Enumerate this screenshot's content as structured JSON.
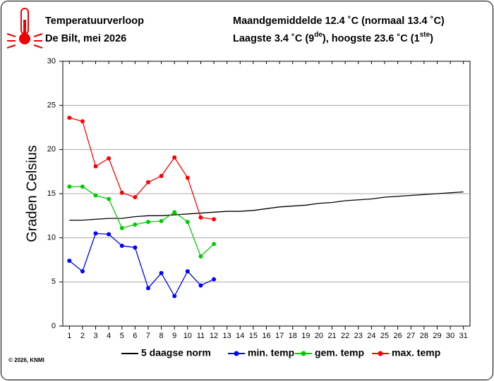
{
  "chart_data": {
    "type": "line",
    "title": "Temperatuurverloop",
    "subtitle": "De Bilt, mei 2026",
    "header_right": [
      "Maandgemiddelde 12.4 ˚C (normaal 13.4 ˚C)",
      [
        "Laagste 3.4 ˚C (9",
        "de",
        "), hoogste 23.6 ˚C (1",
        "ste",
        ")"
      ]
    ],
    "ylabel": "Graden Celsius",
    "footer": "© 2026, KNMI",
    "x": [
      1,
      2,
      3,
      4,
      5,
      6,
      7,
      8,
      9,
      10,
      11,
      12,
      13,
      14,
      15,
      16,
      17,
      18,
      19,
      20,
      21,
      22,
      23,
      24,
      25,
      26,
      27,
      28,
      29,
      30,
      31
    ],
    "xlim": [
      0.5,
      31.5
    ],
    "xticks": [
      1,
      2,
      3,
      4,
      5,
      6,
      7,
      8,
      9,
      10,
      11,
      12,
      13,
      14,
      15,
      16,
      17,
      18,
      19,
      20,
      21,
      22,
      23,
      24,
      25,
      26,
      27,
      28,
      29,
      30,
      31
    ],
    "ylim": [
      0,
      30
    ],
    "yticks": [
      0,
      5,
      10,
      15,
      20,
      25,
      30
    ],
    "grid": true,
    "series": [
      {
        "name": "5 daagse norm",
        "color": "#000000",
        "markers": false,
        "values": [
          12.0,
          12.0,
          12.1,
          12.2,
          12.2,
          12.4,
          12.5,
          12.5,
          12.6,
          12.7,
          12.8,
          12.9,
          13.0,
          13.0,
          13.1,
          13.3,
          13.5,
          13.6,
          13.7,
          13.9,
          14.0,
          14.2,
          14.3,
          14.4,
          14.6,
          14.7,
          14.8,
          14.9,
          15.0,
          15.1,
          15.2
        ]
      },
      {
        "name": "min. temp",
        "color": "#0000ff",
        "markers": true,
        "values": [
          7.4,
          6.2,
          10.5,
          10.4,
          9.1,
          8.9,
          4.3,
          6.0,
          3.4,
          6.2,
          4.6,
          5.3,
          null,
          null,
          null,
          null,
          null,
          null,
          null,
          null,
          null,
          null,
          null,
          null,
          null,
          null,
          null,
          null,
          null,
          null,
          null
        ]
      },
      {
        "name": "gem. temp",
        "color": "#00cc00",
        "markers": true,
        "values": [
          15.8,
          15.8,
          14.8,
          14.4,
          11.1,
          11.5,
          11.8,
          11.9,
          12.9,
          11.8,
          7.9,
          9.3,
          null,
          null,
          null,
          null,
          null,
          null,
          null,
          null,
          null,
          null,
          null,
          null,
          null,
          null,
          null,
          null,
          null,
          null,
          null
        ]
      },
      {
        "name": "max. temp",
        "color": "#ff0000",
        "markers": true,
        "values": [
          23.6,
          23.2,
          18.1,
          19.0,
          15.1,
          14.6,
          16.3,
          17.0,
          19.1,
          16.8,
          12.3,
          12.1,
          null,
          null,
          null,
          null,
          null,
          null,
          null,
          null,
          null,
          null,
          null,
          null,
          null,
          null,
          null,
          null,
          null,
          null,
          null
        ]
      }
    ]
  }
}
